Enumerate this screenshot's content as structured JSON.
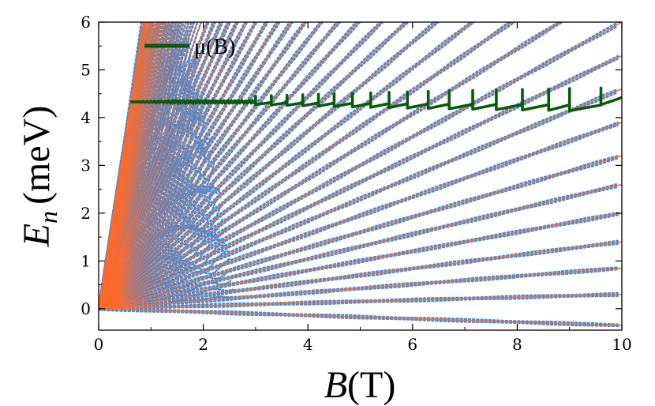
{
  "chart_data": {
    "type": "line",
    "xlabel": {
      "symbol": "B",
      "unit": "(T)"
    },
    "ylabel": {
      "symbol": "E",
      "subscript": "n",
      "unit": "(meV)"
    },
    "xlim": [
      0,
      10
    ],
    "ylim": [
      -0.45,
      6
    ],
    "xticks": [
      0,
      2,
      4,
      6,
      8,
      10
    ],
    "yticks": [
      0,
      1,
      2,
      3,
      4,
      5,
      6
    ],
    "grid": false,
    "legend": {
      "position": "top-left",
      "entries": [
        {
          "label": "μ(B)",
          "color": "#0a5a0a"
        }
      ]
    },
    "colors": {
      "numerical_levels": "#3b8fe6",
      "analytic_levels": "#ff6a2a",
      "chemical_potential": "#0a5a0a"
    },
    "series": [
      {
        "kind": "landau_fan_analytic",
        "style": "solid",
        "slopes_meV_per_T": [
          -0.035,
          0.03,
          0.085,
          0.14,
          0.2,
          0.26,
          0.32,
          0.39,
          0.46,
          0.53,
          0.6,
          0.68,
          0.76,
          0.84,
          0.93,
          1.02,
          1.11,
          1.21,
          1.31,
          1.41,
          1.52,
          1.63,
          1.75,
          1.87,
          2.0,
          2.13,
          2.27,
          2.41,
          2.56,
          2.72,
          2.88
        ]
      },
      {
        "kind": "landau_fan_numerical",
        "style": "dotted",
        "comment_free": true
      },
      {
        "name": "μ(B)",
        "kind": "chemical_potential",
        "style": "solid",
        "x": [
          0.6,
          10
        ],
        "baseline_meV": 4.33,
        "sawtooth_period_points": [
          3.0,
          3.3,
          3.6,
          3.9,
          4.2,
          4.5,
          4.85,
          5.2,
          5.55,
          5.9,
          6.3,
          6.7,
          7.15,
          7.6,
          8.1,
          8.6,
          9.0,
          9.6
        ]
      }
    ]
  }
}
